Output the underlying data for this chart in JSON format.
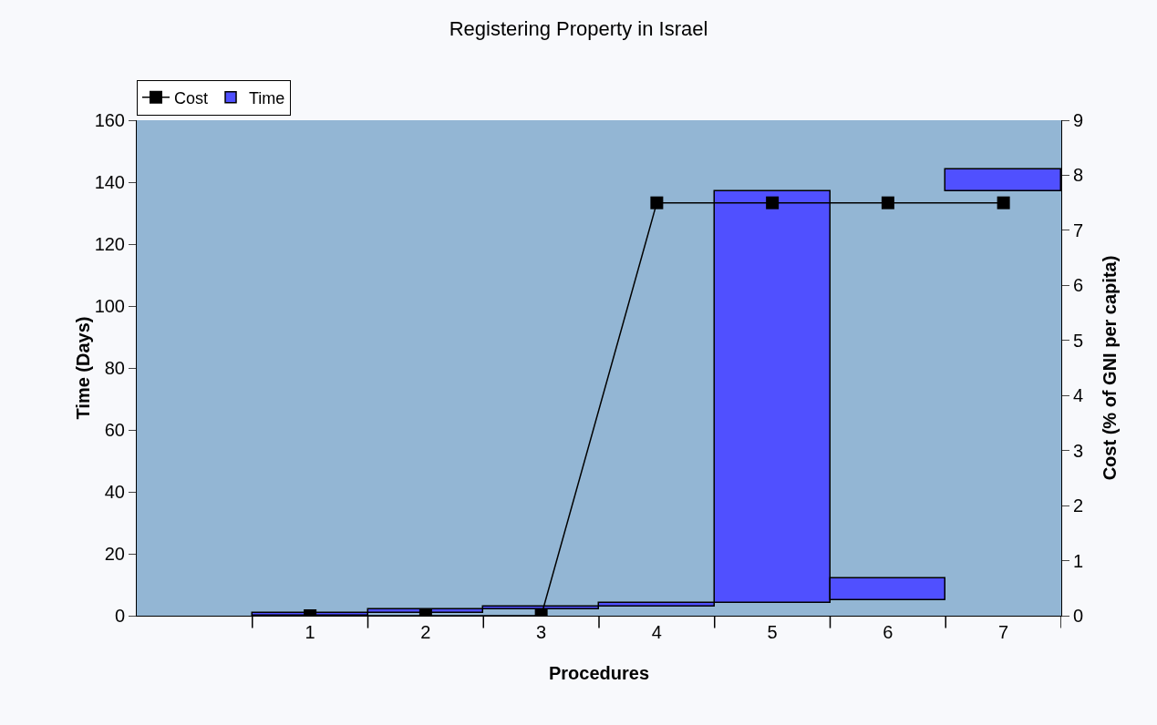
{
  "chart_data": {
    "type": "bar",
    "title": "Registering Property in Israel",
    "xlabel": "Procedures",
    "ylabel": "Time (Days)",
    "y2label": "Cost (% of GNI per capita)",
    "categories": [
      "1",
      "2",
      "3",
      "4",
      "5",
      "6",
      "7"
    ],
    "series": [
      {
        "name": "Cost",
        "type": "line",
        "axis": "y2",
        "color": "#000000",
        "marker": "square",
        "values": [
          0,
          0,
          0,
          7.5,
          7.5,
          7.5,
          7.5
        ]
      },
      {
        "name": "Time",
        "color": "#5050ff",
        "base": [
          0,
          1,
          2,
          3,
          4,
          5,
          137
        ],
        "values": [
          1,
          1,
          1,
          1,
          133,
          7,
          7
        ]
      }
    ],
    "ylim": [
      0,
      160
    ],
    "yticks": [
      0,
      20,
      40,
      60,
      80,
      100,
      120,
      140,
      160
    ],
    "y2lim": [
      0,
      9
    ],
    "y2ticks": [
      0,
      1,
      2,
      3,
      4,
      5,
      6,
      7,
      8,
      9
    ],
    "grid": false,
    "legend": "top left"
  }
}
